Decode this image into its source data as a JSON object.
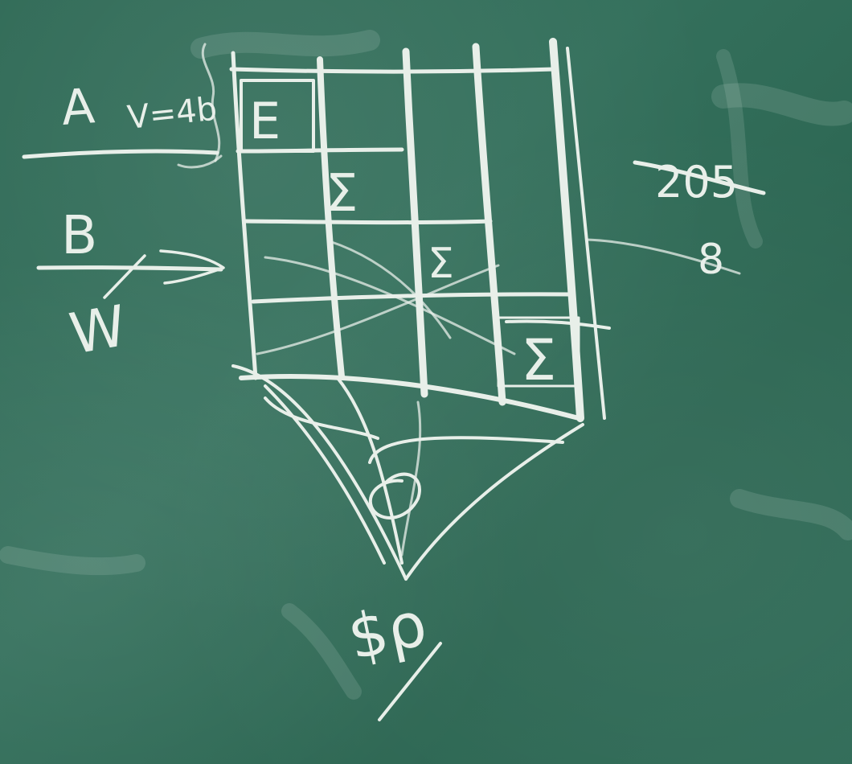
{
  "board": {
    "left_labels": {
      "a": "A",
      "a_formula": "V=4b",
      "b": "B",
      "w": "W"
    },
    "grid_cells": [
      "E",
      "Σ",
      "Σ",
      "Σ"
    ],
    "right_labels": [
      "205",
      "8"
    ],
    "bottom_label": "$ρ"
  },
  "colors": {
    "board": "#2f6a57",
    "chalk": "#e8efe9"
  }
}
